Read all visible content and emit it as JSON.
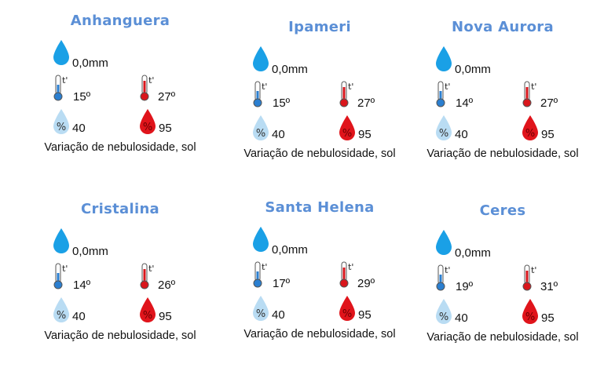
{
  "cities": [
    {
      "name": "Anhanguera",
      "rain": "0,0mm",
      "temp_min": "15º",
      "temp_max": "27º",
      "humidity_min": "40",
      "humidity_max": "95",
      "condition": "Variação de nebulosidade, sol"
    },
    {
      "name": "Ipameri",
      "rain": "0,0mm",
      "temp_min": "15º",
      "temp_max": "27º",
      "humidity_min": "40",
      "humidity_max": "95",
      "condition": "Variação de nebulosidade, sol"
    },
    {
      "name": "Nova Aurora",
      "rain": "0,0mm",
      "temp_min": "14º",
      "temp_max": "27º",
      "humidity_min": "40",
      "humidity_max": "95",
      "condition": "Variação de nebulosidade, sol"
    },
    {
      "name": "Cristalina",
      "rain": "0,0mm",
      "temp_min": "14º",
      "temp_max": "26º",
      "humidity_min": "40",
      "humidity_max": "95",
      "condition": "Variação de nebulosidade, sol"
    },
    {
      "name": "Santa Helena",
      "rain": "0,0mm",
      "temp_min": "17º",
      "temp_max": "29º",
      "humidity_min": "40",
      "humidity_max": "95",
      "condition": "Variação de nebulosidade, sol"
    },
    {
      "name": "Ceres",
      "rain": "0,0mm",
      "temp_min": "19º",
      "temp_max": "31º",
      "humidity_min": "40",
      "humidity_max": "95",
      "condition": "Variação de nebulosidade, sol"
    }
  ],
  "icon_labels": {
    "temperature": "t'",
    "humidity": "%"
  },
  "colors": {
    "city_title": "#5b8fd6",
    "rain_drop": "#1aa0e6",
    "min_accent": "#2b7fd0",
    "max_accent": "#d9161c",
    "humidity_low": "#b9dcf3",
    "humidity_high": "#e0141b"
  }
}
